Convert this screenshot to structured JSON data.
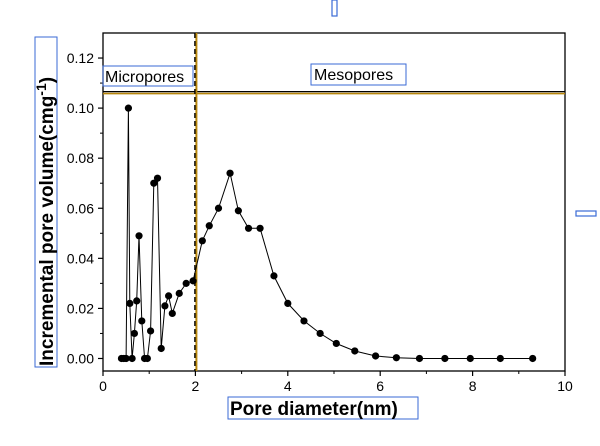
{
  "chart_data": {
    "type": "scatter",
    "title": "",
    "xlabel": "Pore diameter(nm)",
    "ylabel_main": "Incremental pore volume(cmg",
    "ylabel_sup": "-1",
    "ylabel_close": ")",
    "xlim": [
      0,
      10
    ],
    "ylim": [
      -0.005,
      0.13
    ],
    "xticks": [
      0,
      2,
      4,
      6,
      8,
      10
    ],
    "yticks": [
      0.0,
      0.02,
      0.04,
      0.06,
      0.08,
      0.1,
      0.12
    ],
    "xtick_labels": [
      "0",
      "2",
      "4",
      "6",
      "8",
      "10"
    ],
    "ytick_labels": [
      "0.00",
      "0.02",
      "0.04",
      "0.06",
      "0.08",
      "0.10",
      "0.12"
    ],
    "grid": false,
    "divider_x": 2,
    "region_boundary_y": 0.106,
    "regions": [
      "Micropores",
      "Mesopores"
    ],
    "marker_color": "#000000",
    "divider_color": "#b8860b",
    "series": [
      {
        "x": [
          0.4,
          0.45,
          0.5,
          0.55,
          0.58,
          0.63,
          0.68,
          0.73,
          0.78,
          0.84,
          0.9,
          0.96,
          1.03,
          1.1,
          1.18,
          1.26,
          1.34,
          1.42,
          1.5,
          1.65,
          1.8,
          1.95,
          2.15,
          2.3,
          2.5,
          2.75,
          2.93,
          3.15,
          3.4,
          3.7,
          4.0,
          4.35,
          4.7,
          5.05,
          5.45,
          5.9,
          6.35,
          6.85,
          7.4,
          7.95,
          8.6,
          9.3
        ],
        "y": [
          0.0,
          0.0,
          0.0,
          0.1,
          0.022,
          0.0,
          0.01,
          0.023,
          0.049,
          0.015,
          0.0,
          0.0,
          0.011,
          0.07,
          0.072,
          0.004,
          0.021,
          0.025,
          0.018,
          0.026,
          0.03,
          0.031,
          0.047,
          0.053,
          0.06,
          0.074,
          0.059,
          0.052,
          0.052,
          0.033,
          0.022,
          0.015,
          0.01,
          0.006,
          0.003,
          0.001,
          0.0003,
          0.0,
          0.0,
          0.0,
          0.0,
          0.0
        ]
      }
    ]
  }
}
